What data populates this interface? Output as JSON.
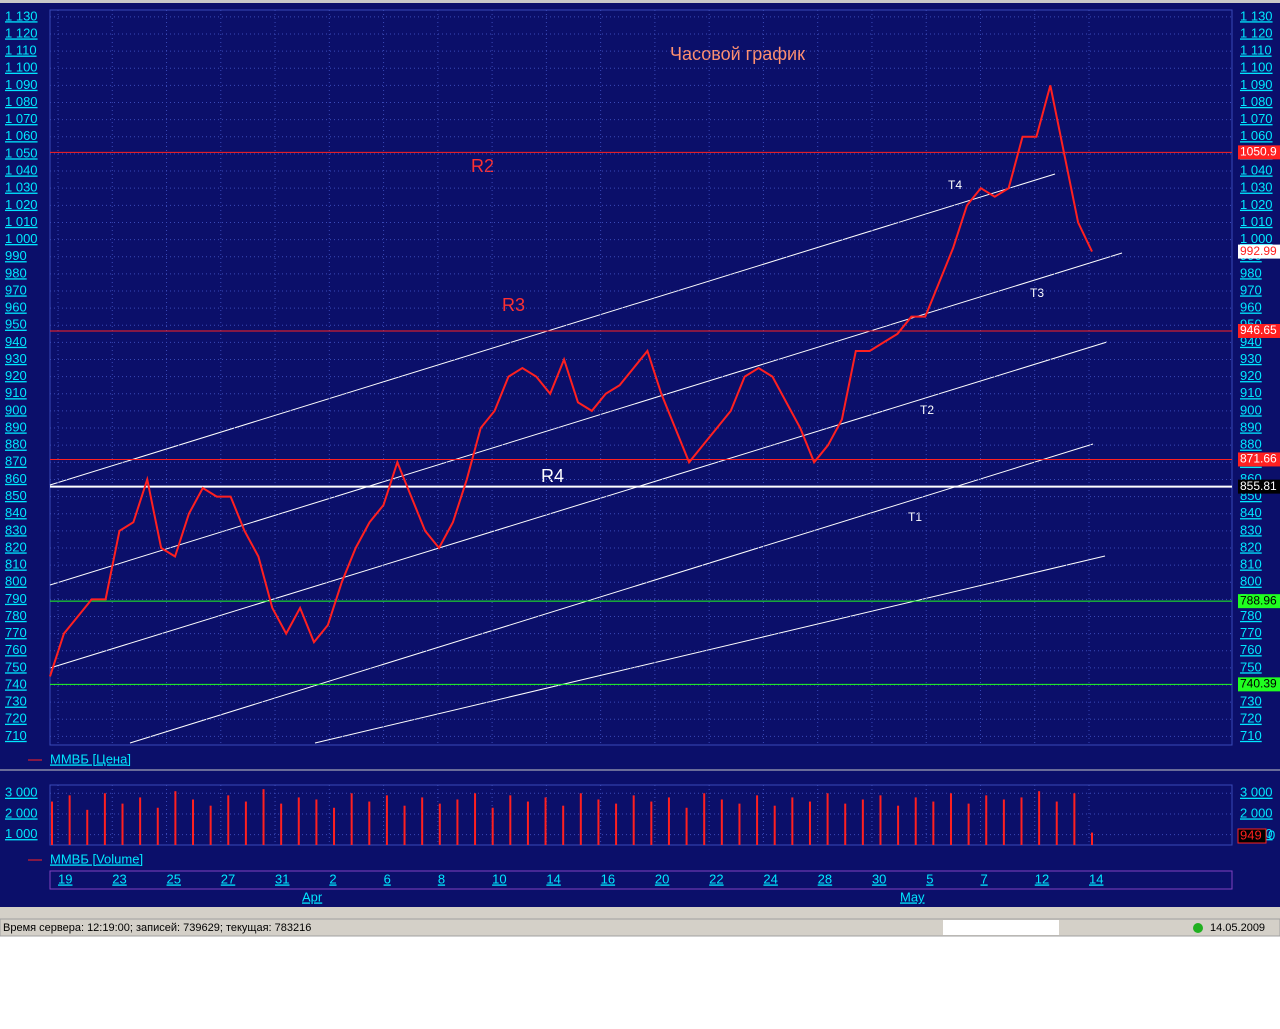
{
  "chart_data": [
    {
      "type": "line",
      "title": "Часовой график",
      "legend": "ММВБ [Цена]",
      "color": "#ff2020",
      "ylim": [
        705,
        1134
      ],
      "yticks": [
        710,
        720,
        730,
        740,
        750,
        760,
        770,
        780,
        790,
        800,
        810,
        820,
        830,
        840,
        850,
        860,
        870,
        880,
        890,
        900,
        910,
        920,
        930,
        940,
        950,
        960,
        970,
        980,
        990,
        {
          "value": 1000,
          "label": "1 000"
        },
        {
          "value": 1010,
          "label": "1 010"
        },
        {
          "value": 1020,
          "label": "1 020"
        },
        {
          "value": 1030,
          "label": "1 030"
        },
        {
          "value": 1040,
          "label": "1 040"
        },
        {
          "value": 1050,
          "label": "1 050"
        },
        {
          "value": 1060,
          "label": "1 060"
        },
        {
          "value": 1070,
          "label": "1 070"
        },
        {
          "value": 1080,
          "label": "1 080"
        },
        {
          "value": 1090,
          "label": "1 090"
        },
        {
          "value": 1100,
          "label": "1 100"
        },
        {
          "value": 1110,
          "label": "1 110"
        },
        {
          "value": 1120,
          "label": "1 120"
        },
        {
          "value": 1130,
          "label": "1 130"
        }
      ],
      "values": [
        745,
        770,
        780,
        790,
        790,
        830,
        835,
        860,
        820,
        815,
        840,
        855,
        850,
        850,
        830,
        815,
        785,
        770,
        785,
        765,
        775,
        800,
        820,
        835,
        845,
        870,
        850,
        830,
        820,
        835,
        860,
        890,
        900,
        920,
        925,
        920,
        910,
        930,
        905,
        900,
        910,
        915,
        925,
        935,
        910,
        890,
        870,
        880,
        890,
        900,
        920,
        925,
        920,
        905,
        890,
        870,
        880,
        895,
        935,
        935,
        940,
        945,
        955,
        955,
        975,
        995,
        1020,
        1030,
        1025,
        1030,
        1060,
        1060,
        1090,
        1050,
        1010,
        993
      ],
      "current": {
        "value": 992.99,
        "label": "992.99"
      },
      "levels": [
        {
          "value": 1050.9,
          "label": "1050.9",
          "color": "#ff2020"
        },
        {
          "value": 946.65,
          "label": "946.65",
          "color": "#ff2020"
        },
        {
          "value": 871.66,
          "label": "871.66",
          "color": "#ff2020"
        },
        {
          "value": 855.81,
          "label": "855.81",
          "color": "#ffffff"
        },
        {
          "value": 788.96,
          "label": "788.96",
          "color": "#20ff20"
        },
        {
          "value": 740.39,
          "label": "740.39",
          "color": "#20ff20"
        }
      ],
      "annotations": [
        "R2",
        "R3",
        "R4",
        "T4",
        "T3",
        "T2",
        "T1"
      ]
    },
    {
      "type": "bar",
      "legend": "ММВБ [Volume]",
      "color": "#ff2020",
      "ylim": [
        500,
        3400
      ],
      "yticks": [
        {
          "value": 1000,
          "label": "1 000"
        },
        {
          "value": 2000,
          "label": "2 000"
        },
        {
          "value": 3000,
          "label": "3 000"
        }
      ],
      "values": [
        2600,
        2900,
        2200,
        3000,
        2500,
        2800,
        2300,
        3100,
        2700,
        2400,
        2900,
        2600,
        3200,
        2500,
        2800,
        2700,
        2300,
        3000,
        2600,
        2900,
        2400,
        2800,
        2500,
        2700,
        3000,
        2300,
        2900,
        2600,
        2800,
        2400,
        3000,
        2700,
        2500,
        2900,
        2600,
        2800,
        2300,
        3000,
        2700,
        2500,
        2900,
        2400,
        2800,
        2600,
        3000,
        2500,
        2700,
        2900,
        2400,
        2800,
        2600,
        3000,
        2500,
        2900,
        2700,
        2800,
        3100,
        2600,
        3000,
        1100
      ],
      "current": 949,
      "current_zero": 0
    },
    {
      "type": "axis",
      "categories": [
        "19",
        "23",
        "25",
        "27",
        "31",
        "2",
        "6",
        "8",
        "10",
        "14",
        "16",
        "20",
        "22",
        "24",
        "28",
        "30",
        "5",
        "7",
        "12",
        "14"
      ],
      "months": [
        "Apr",
        "May"
      ]
    }
  ],
  "status": {
    "server": "Время сервера: 12:19:00; записей: 739629; текущая: 783216",
    "date": "14.05.2009"
  }
}
